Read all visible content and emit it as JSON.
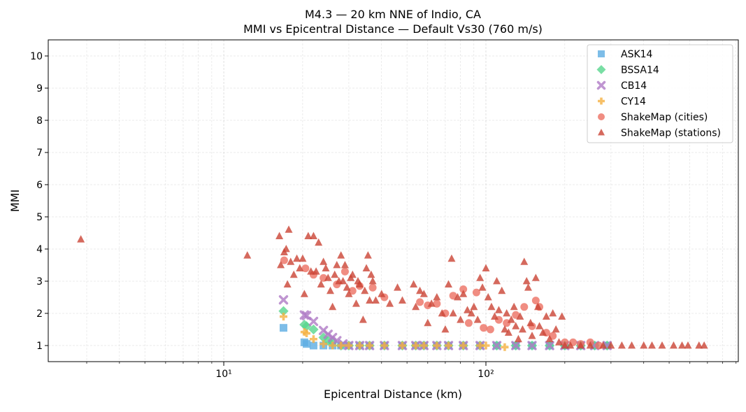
{
  "chart_data": {
    "type": "scatter",
    "title": "M4.3 — 20 km NNE of Indio, CA",
    "subtitle": "MMI vs Epicentral Distance — Default Vs30 (760 m/s)",
    "xlabel": "Epicentral Distance (km)",
    "ylabel": "MMI",
    "xscale": "log",
    "xlim": [
      2.14,
      918
    ],
    "ylim": [
      0.5,
      10.5
    ],
    "xticks": [
      {
        "value": 10,
        "label": "10¹"
      },
      {
        "value": 100,
        "label": "10²"
      }
    ],
    "yticks": [
      "1",
      "2",
      "3",
      "4",
      "5",
      "6",
      "7",
      "8",
      "9",
      "10"
    ],
    "grid": true,
    "legend_position": "top-right",
    "series": [
      {
        "name": "ASK14",
        "marker": "square",
        "color": "#5DADE2",
        "points": [
          [
            16.9,
            1.55
          ],
          [
            20.3,
            1.1
          ],
          [
            20.7,
            1.05
          ],
          [
            22,
            1.0
          ],
          [
            24,
            1.0
          ],
          [
            26,
            1.0
          ],
          [
            28,
            1.0
          ],
          [
            30,
            1.0
          ],
          [
            33,
            1.0
          ],
          [
            36,
            1.0
          ],
          [
            41,
            1.0
          ],
          [
            48,
            1.0
          ],
          [
            54,
            1.0
          ],
          [
            58,
            1.0
          ],
          [
            65,
            1.0
          ],
          [
            72,
            1.0
          ],
          [
            82,
            1.0
          ],
          [
            95,
            1.0
          ],
          [
            110,
            1.0
          ],
          [
            130,
            1.0
          ],
          [
            150,
            1.0
          ],
          [
            175,
            1.0
          ],
          [
            200,
            1.0
          ],
          [
            230,
            1.0
          ],
          [
            260,
            1.0
          ],
          [
            290,
            1.0
          ]
        ]
      },
      {
        "name": "BSSA14",
        "marker": "diamond",
        "color": "#58D68D",
        "points": [
          [
            16.9,
            2.07
          ],
          [
            20.3,
            1.65
          ],
          [
            20.7,
            1.6
          ],
          [
            22,
            1.5
          ],
          [
            24,
            1.25
          ],
          [
            25,
            1.15
          ],
          [
            26,
            1.1
          ],
          [
            28,
            1.0
          ],
          [
            30,
            1.0
          ],
          [
            33,
            1.0
          ],
          [
            36,
            1.0
          ],
          [
            41,
            1.0
          ],
          [
            48,
            1.0
          ],
          [
            54,
            1.0
          ],
          [
            58,
            1.0
          ],
          [
            65,
            1.0
          ],
          [
            72,
            1.0
          ],
          [
            82,
            1.0
          ],
          [
            95,
            1.0
          ],
          [
            110,
            1.0
          ],
          [
            130,
            1.0
          ],
          [
            150,
            1.0
          ],
          [
            175,
            1.0
          ],
          [
            200,
            1.0
          ],
          [
            230,
            1.0
          ],
          [
            260,
            1.0
          ],
          [
            290,
            1.0
          ]
        ]
      },
      {
        "name": "CB14",
        "marker": "x",
        "color": "#AF7AC5",
        "points": [
          [
            16.9,
            2.42
          ],
          [
            20.3,
            1.95
          ],
          [
            20.7,
            1.93
          ],
          [
            22,
            1.75
          ],
          [
            24,
            1.47
          ],
          [
            25,
            1.35
          ],
          [
            26,
            1.25
          ],
          [
            27,
            1.15
          ],
          [
            28.5,
            1.05
          ],
          [
            30,
            1.0
          ],
          [
            33,
            1.0
          ],
          [
            36,
            1.0
          ],
          [
            41,
            1.0
          ],
          [
            48,
            1.0
          ],
          [
            54,
            1.0
          ],
          [
            58,
            1.0
          ],
          [
            65,
            1.0
          ],
          [
            72,
            1.0
          ],
          [
            82,
            1.0
          ],
          [
            95,
            1.0
          ],
          [
            110,
            1.0
          ],
          [
            130,
            1.0
          ],
          [
            150,
            1.0
          ],
          [
            175,
            1.0
          ],
          [
            200,
            1.0
          ],
          [
            230,
            1.0
          ],
          [
            260,
            1.0
          ],
          [
            290,
            1.0
          ]
        ]
      },
      {
        "name": "CY14",
        "marker": "plus",
        "color": "#F5B041",
        "points": [
          [
            16.9,
            1.9
          ],
          [
            20.3,
            1.42
          ],
          [
            20.7,
            1.38
          ],
          [
            22,
            1.2
          ],
          [
            24,
            1.05
          ],
          [
            26,
            1.0
          ],
          [
            28,
            1.0
          ],
          [
            30,
            1.0
          ],
          [
            33,
            1.0
          ],
          [
            36,
            1.0
          ],
          [
            41,
            1.0
          ],
          [
            48,
            1.0
          ],
          [
            54,
            1.0
          ],
          [
            58,
            1.0
          ],
          [
            65,
            1.0
          ],
          [
            72,
            1.0
          ],
          [
            82,
            1.0
          ],
          [
            95,
            1.0
          ],
          [
            100,
            1.0
          ],
          [
            118,
            0.95
          ]
        ]
      },
      {
        "name": "ShakeMap (cities)",
        "marker": "circle",
        "color": "#EC7063",
        "points": [
          [
            17,
            3.65
          ],
          [
            20.5,
            3.4
          ],
          [
            22,
            3.2
          ],
          [
            24,
            3.1
          ],
          [
            27,
            2.9
          ],
          [
            29,
            3.3
          ],
          [
            31,
            2.7
          ],
          [
            33,
            2.85
          ],
          [
            37,
            2.8
          ],
          [
            41,
            2.5
          ],
          [
            56,
            2.35
          ],
          [
            60,
            2.25
          ],
          [
            65,
            2.3
          ],
          [
            70,
            2.0
          ],
          [
            75,
            2.55
          ],
          [
            82,
            2.75
          ],
          [
            86,
            1.7
          ],
          [
            92,
            2.65
          ],
          [
            98,
            1.55
          ],
          [
            104,
            1.5
          ],
          [
            112,
            1.8
          ],
          [
            120,
            1.7
          ],
          [
            130,
            1.95
          ],
          [
            140,
            2.2
          ],
          [
            150,
            1.6
          ],
          [
            155,
            2.4
          ],
          [
            160,
            2.2
          ],
          [
            170,
            1.4
          ],
          [
            180,
            1.3
          ],
          [
            200,
            1.1
          ],
          [
            215,
            1.1
          ],
          [
            230,
            1.05
          ],
          [
            250,
            1.1
          ],
          [
            270,
            1.0
          ]
        ]
      },
      {
        "name": "ShakeMap (stations)",
        "marker": "triangle",
        "color": "#CB4335",
        "points": [
          [
            2.85,
            4.3
          ],
          [
            12.3,
            3.8
          ],
          [
            16.3,
            4.4
          ],
          [
            17.7,
            4.6
          ],
          [
            16.5,
            3.5
          ],
          [
            17,
            3.9
          ],
          [
            17.3,
            4.0
          ],
          [
            17.5,
            2.9
          ],
          [
            18,
            3.6
          ],
          [
            18.5,
            3.2
          ],
          [
            19,
            3.7
          ],
          [
            19.5,
            3.4
          ],
          [
            20,
            3.7
          ],
          [
            20.3,
            2.6
          ],
          [
            21,
            4.4
          ],
          [
            21.5,
            3.3
          ],
          [
            22,
            4.4
          ],
          [
            22.5,
            3.3
          ],
          [
            23,
            4.2
          ],
          [
            23.5,
            2.9
          ],
          [
            24,
            3.6
          ],
          [
            24.5,
            3.4
          ],
          [
            25,
            3.1
          ],
          [
            25.5,
            2.7
          ],
          [
            26,
            2.2
          ],
          [
            26.5,
            3.2
          ],
          [
            27,
            3.5
          ],
          [
            27.5,
            3.0
          ],
          [
            28,
            3.8
          ],
          [
            28.5,
            3.0
          ],
          [
            29,
            3.5
          ],
          [
            29.5,
            2.8
          ],
          [
            30,
            2.6
          ],
          [
            30.5,
            3.1
          ],
          [
            31,
            3.2
          ],
          [
            32,
            2.3
          ],
          [
            32.5,
            3.0
          ],
          [
            33,
            2.9
          ],
          [
            34,
            1.8
          ],
          [
            34.5,
            2.7
          ],
          [
            35,
            3.4
          ],
          [
            35.5,
            3.8
          ],
          [
            36,
            2.4
          ],
          [
            36.5,
            3.2
          ],
          [
            37,
            3.0
          ],
          [
            38,
            2.4
          ],
          [
            40,
            2.6
          ],
          [
            43,
            2.3
          ],
          [
            46,
            2.8
          ],
          [
            48,
            2.4
          ],
          [
            53,
            2.9
          ],
          [
            54,
            2.2
          ],
          [
            56,
            2.7
          ],
          [
            58,
            2.6
          ],
          [
            60,
            1.7
          ],
          [
            62,
            2.3
          ],
          [
            65,
            2.5
          ],
          [
            68,
            2.0
          ],
          [
            70,
            1.5
          ],
          [
            72,
            2.9
          ],
          [
            74,
            3.7
          ],
          [
            75,
            2.0
          ],
          [
            78,
            2.5
          ],
          [
            80,
            1.8
          ],
          [
            82,
            2.6
          ],
          [
            85,
            2.1
          ],
          [
            88,
            2.0
          ],
          [
            90,
            2.2
          ],
          [
            93,
            1.8
          ],
          [
            95,
            3.1
          ],
          [
            97,
            2.8
          ],
          [
            100,
            3.4
          ],
          [
            102,
            2.5
          ],
          [
            105,
            2.2
          ],
          [
            108,
            1.9
          ],
          [
            110,
            3.0
          ],
          [
            112,
            2.1
          ],
          [
            115,
            2.7
          ],
          [
            118,
            1.5
          ],
          [
            120,
            2.0
          ],
          [
            122,
            1.4
          ],
          [
            125,
            1.8
          ],
          [
            128,
            2.2
          ],
          [
            130,
            1.6
          ],
          [
            133,
            1.2
          ],
          [
            135,
            1.9
          ],
          [
            138,
            1.5
          ],
          [
            140,
            3.6
          ],
          [
            143,
            3.0
          ],
          [
            145,
            2.8
          ],
          [
            148,
            1.7
          ],
          [
            150,
            1.3
          ],
          [
            155,
            3.1
          ],
          [
            158,
            2.2
          ],
          [
            160,
            1.6
          ],
          [
            165,
            1.4
          ],
          [
            170,
            1.9
          ],
          [
            175,
            1.2
          ],
          [
            180,
            2.0
          ],
          [
            185,
            1.5
          ],
          [
            190,
            1.1
          ],
          [
            195,
            1.9
          ],
          [
            200,
            1.0
          ],
          [
            210,
            1.0
          ],
          [
            230,
            1.0
          ],
          [
            250,
            1.0
          ],
          [
            280,
            1.0
          ],
          [
            300,
            1.0
          ],
          [
            330,
            1.0
          ],
          [
            360,
            1.0
          ],
          [
            400,
            1.0
          ],
          [
            430,
            1.0
          ],
          [
            470,
            1.0
          ],
          [
            520,
            1.0
          ],
          [
            560,
            1.0
          ],
          [
            590,
            1.0
          ],
          [
            650,
            1.0
          ],
          [
            680,
            1.0
          ]
        ]
      }
    ]
  }
}
